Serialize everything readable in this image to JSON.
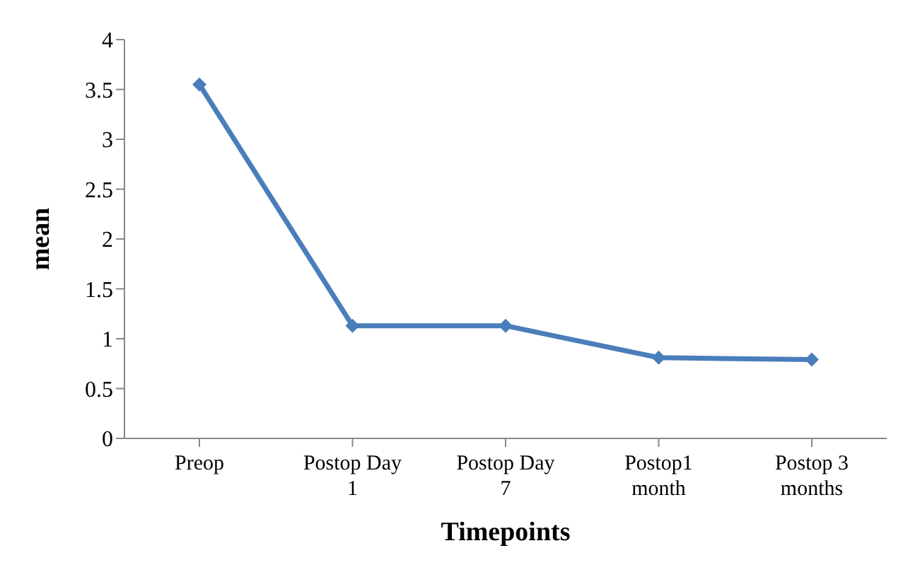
{
  "chart_data": {
    "type": "line",
    "xlabel": "Timepoints",
    "ylabel": "mean",
    "categories": [
      "Preop",
      "Postop Day 1",
      "Postop Day 7",
      "Postop1 month",
      "Postop 3 months"
    ],
    "series": [
      {
        "color": "#4a7ebb",
        "values": [
          3.55,
          1.13,
          1.13,
          0.81,
          0.79
        ]
      }
    ],
    "ylim": [
      0,
      4
    ],
    "yticks": [
      0,
      0.5,
      1,
      1.5,
      2,
      2.5,
      3,
      3.5,
      4
    ],
    "grid": false,
    "legend": false,
    "marker": "diamond",
    "line_style": "solid"
  }
}
